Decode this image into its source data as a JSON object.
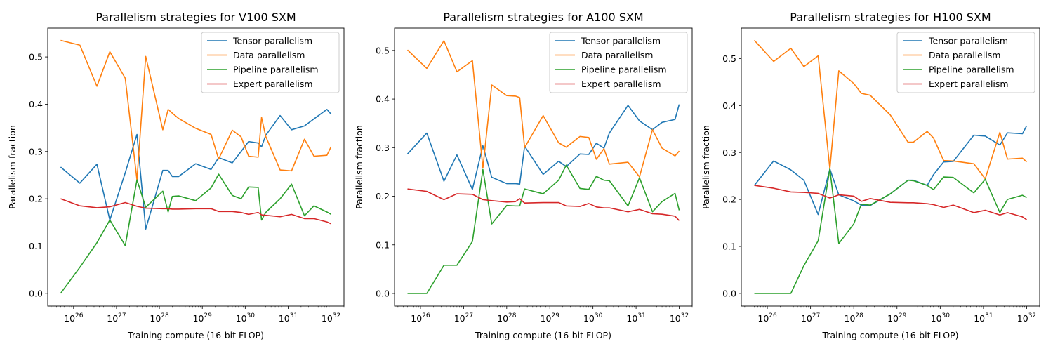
{
  "series_colors": {
    "Tensor parallelism": "#1f77b4",
    "Data parallelism": "#ff7f0e",
    "Pipeline parallelism": "#2ca02c",
    "Expert parallelism": "#d62728"
  },
  "chart_data": [
    {
      "type": "line",
      "title": "Parallelism strategies for V100 SXM",
      "xlabel": "Training compute (16-bit FLOP)",
      "ylabel": "Parallelism fraction",
      "xscale": "log",
      "xlim": [
        2.5e+25,
        2e+32
      ],
      "ylim": [
        -0.027,
        0.561
      ],
      "x_ticks": [
        {
          "value": 1e+26,
          "label": "10",
          "exp": "26"
        },
        {
          "value": 1e+27,
          "label": "10",
          "exp": "27"
        },
        {
          "value": 1e+28,
          "label": "10",
          "exp": "28"
        },
        {
          "value": 1e+29,
          "label": "10",
          "exp": "29"
        },
        {
          "value": 1e+30,
          "label": "10",
          "exp": "30"
        },
        {
          "value": 1e+31,
          "label": "10",
          "exp": "31"
        },
        {
          "value": 1e+32,
          "label": "10",
          "exp": "32"
        }
      ],
      "y_ticks": [
        {
          "value": 0.0,
          "label": "0.0"
        },
        {
          "value": 0.1,
          "label": "0.1"
        },
        {
          "value": 0.2,
          "label": "0.2"
        },
        {
          "value": 0.3,
          "label": "0.3"
        },
        {
          "value": 0.4,
          "label": "0.4"
        },
        {
          "value": 0.5,
          "label": "0.5"
        }
      ],
      "legend_position": "top-right",
      "series": [
        {
          "name": "Tensor parallelism",
          "x": [
            5e+25,
            1.4e+26,
            3.5e+26,
            7e+26,
            1.6e+27,
            3e+27,
            4.8e+27,
            1.2e+28,
            1.6e+28,
            2e+28,
            2.8e+28,
            7e+28,
            1.6e+29,
            2.4e+29,
            5e+29,
            8e+29,
            1.2e+30,
            2e+30,
            2.4e+30,
            3e+30,
            6.5e+30,
            1.2e+31,
            2.4e+31,
            4e+31,
            8e+31,
            1e+32
          ],
          "y": [
            0.267,
            0.233,
            0.273,
            0.155,
            0.255,
            0.336,
            0.136,
            0.26,
            0.26,
            0.247,
            0.247,
            0.274,
            0.262,
            0.287,
            0.276,
            0.3,
            0.321,
            0.318,
            0.31,
            0.334,
            0.376,
            0.346,
            0.354,
            0.369,
            0.389,
            0.379
          ]
        },
        {
          "name": "Data parallelism",
          "x": [
            5e+25,
            1.4e+26,
            3.5e+26,
            7e+26,
            1.6e+27,
            3e+27,
            4.8e+27,
            1.2e+28,
            1.6e+28,
            2e+28,
            2.8e+28,
            7e+28,
            1.6e+29,
            2.4e+29,
            5e+29,
            8e+29,
            1.2e+30,
            2e+30,
            2.4e+30,
            3e+30,
            6.5e+30,
            1.2e+31,
            2.4e+31,
            4e+31,
            8e+31,
            1e+32
          ],
          "y": [
            0.535,
            0.525,
            0.438,
            0.511,
            0.455,
            0.24,
            0.501,
            0.346,
            0.389,
            0.381,
            0.37,
            0.349,
            0.336,
            0.284,
            0.345,
            0.331,
            0.29,
            0.288,
            0.372,
            0.332,
            0.261,
            0.259,
            0.326,
            0.29,
            0.292,
            0.31
          ]
        },
        {
          "name": "Pipeline parallelism",
          "x": [
            5e+25,
            1.4e+26,
            3.5e+26,
            7e+26,
            1.6e+27,
            3e+27,
            4.8e+27,
            1.2e+28,
            1.6e+28,
            2e+28,
            2.8e+28,
            7e+28,
            1.6e+29,
            2.4e+29,
            5e+29,
            8e+29,
            1.2e+30,
            2e+30,
            2.4e+30,
            3e+30,
            6.5e+30,
            1.2e+31,
            2.4e+31,
            4e+31,
            8e+31,
            1e+32
          ],
          "y": [
            0.0,
            0.055,
            0.107,
            0.155,
            0.101,
            0.24,
            0.182,
            0.216,
            0.172,
            0.205,
            0.206,
            0.196,
            0.223,
            0.252,
            0.207,
            0.2,
            0.225,
            0.224,
            0.155,
            0.171,
            0.2,
            0.231,
            0.164,
            0.185,
            0.172,
            0.167
          ]
        },
        {
          "name": "Expert parallelism",
          "x": [
            5e+25,
            1.4e+26,
            3.5e+26,
            7e+26,
            1.6e+27,
            3e+27,
            4.8e+27,
            1.2e+28,
            1.6e+28,
            2e+28,
            2.8e+28,
            7e+28,
            1.6e+29,
            2.4e+29,
            5e+29,
            8e+29,
            1.2e+30,
            2e+30,
            2.4e+30,
            3e+30,
            6.5e+30,
            1.2e+31,
            2.4e+31,
            4e+31,
            8e+31,
            1e+32
          ],
          "y": [
            0.2,
            0.185,
            0.181,
            0.183,
            0.192,
            0.184,
            0.18,
            0.179,
            0.179,
            0.178,
            0.178,
            0.179,
            0.179,
            0.173,
            0.173,
            0.171,
            0.167,
            0.171,
            0.166,
            0.165,
            0.162,
            0.167,
            0.158,
            0.158,
            0.151,
            0.147
          ]
        }
      ]
    },
    {
      "type": "line",
      "title": "Parallelism strategies for A100 SXM",
      "xlabel": "Training compute (16-bit FLOP)",
      "ylabel": "Parallelism fraction",
      "xscale": "log",
      "xlim": [
        2.5e+25,
        2e+32
      ],
      "ylim": [
        -0.026,
        0.546
      ],
      "x_ticks": [
        {
          "value": 1e+26,
          "label": "10",
          "exp": "26"
        },
        {
          "value": 1e+27,
          "label": "10",
          "exp": "27"
        },
        {
          "value": 1e+28,
          "label": "10",
          "exp": "28"
        },
        {
          "value": 1e+29,
          "label": "10",
          "exp": "29"
        },
        {
          "value": 1e+30,
          "label": "10",
          "exp": "30"
        },
        {
          "value": 1e+31,
          "label": "10",
          "exp": "31"
        },
        {
          "value": 1e+32,
          "label": "10",
          "exp": "32"
        }
      ],
      "y_ticks": [
        {
          "value": 0.0,
          "label": "0.0"
        },
        {
          "value": 0.1,
          "label": "0.1"
        },
        {
          "value": 0.2,
          "label": "0.2"
        },
        {
          "value": 0.3,
          "label": "0.3"
        },
        {
          "value": 0.4,
          "label": "0.4"
        },
        {
          "value": 0.5,
          "label": "0.5"
        }
      ],
      "legend_position": "top-right",
      "series": [
        {
          "name": "Tensor parallelism",
          "x": [
            5e+25,
            1.4e+26,
            3.5e+26,
            7e+26,
            1.6e+27,
            2.8e+27,
            4.5e+27,
            1e+28,
            1.6e+28,
            2e+28,
            2.6e+28,
            7e+28,
            1.6e+29,
            2.4e+29,
            5e+29,
            8e+29,
            1.2e+30,
            1.8e+30,
            2.4e+30,
            6.5e+30,
            1.2e+31,
            2.4e+31,
            4e+31,
            8e+31,
            1e+32
          ],
          "y": [
            0.287,
            0.33,
            0.231,
            0.285,
            0.214,
            0.304,
            0.239,
            0.226,
            0.226,
            0.225,
            0.303,
            0.245,
            0.272,
            0.261,
            0.287,
            0.286,
            0.309,
            0.299,
            0.33,
            0.387,
            0.355,
            0.337,
            0.352,
            0.358,
            0.389
          ]
        },
        {
          "name": "Data parallelism",
          "x": [
            5e+25,
            1.4e+26,
            3.5e+26,
            7e+26,
            1.6e+27,
            2.8e+27,
            4.5e+27,
            1e+28,
            1.6e+28,
            2e+28,
            2.6e+28,
            7e+28,
            1.6e+29,
            2.4e+29,
            5e+29,
            8e+29,
            1.2e+30,
            1.8e+30,
            2.4e+30,
            6.5e+30,
            1.2e+31,
            2.4e+31,
            4e+31,
            8e+31,
            1e+32
          ],
          "y": [
            0.501,
            0.463,
            0.52,
            0.456,
            0.479,
            0.258,
            0.429,
            0.407,
            0.406,
            0.403,
            0.3,
            0.366,
            0.31,
            0.301,
            0.323,
            0.321,
            0.276,
            0.298,
            0.266,
            0.27,
            0.24,
            0.337,
            0.299,
            0.283,
            0.293
          ]
        },
        {
          "name": "Pipeline parallelism",
          "x": [
            5e+25,
            1.4e+26,
            3.5e+26,
            7e+26,
            1.6e+27,
            2.8e+27,
            4.5e+27,
            1e+28,
            1.6e+28,
            2e+28,
            2.6e+28,
            7e+28,
            1.6e+29,
            2.4e+29,
            5e+29,
            8e+29,
            1.2e+30,
            1.8e+30,
            2.4e+30,
            6.5e+30,
            1.2e+31,
            2.4e+31,
            4e+31,
            8e+31,
            1e+32
          ],
          "y": [
            0.0,
            0.0,
            0.058,
            0.058,
            0.107,
            0.255,
            0.143,
            0.181,
            0.18,
            0.18,
            0.215,
            0.205,
            0.233,
            0.264,
            0.216,
            0.214,
            0.241,
            0.233,
            0.232,
            0.18,
            0.238,
            0.168,
            0.189,
            0.206,
            0.171
          ]
        },
        {
          "name": "Expert parallelism",
          "x": [
            5e+25,
            1.4e+26,
            3.5e+26,
            7e+26,
            1.6e+27,
            2.8e+27,
            4.5e+27,
            1e+28,
            1.6e+28,
            2e+28,
            2.6e+28,
            7e+28,
            1.6e+29,
            2.4e+29,
            5e+29,
            8e+29,
            1.2e+30,
            1.8e+30,
            2.4e+30,
            6.5e+30,
            1.2e+31,
            2.4e+31,
            4e+31,
            8e+31,
            1e+32
          ],
          "y": [
            0.215,
            0.21,
            0.193,
            0.205,
            0.204,
            0.193,
            0.191,
            0.188,
            0.189,
            0.195,
            0.186,
            0.187,
            0.187,
            0.18,
            0.179,
            0.185,
            0.178,
            0.176,
            0.176,
            0.168,
            0.173,
            0.164,
            0.163,
            0.159,
            0.15
          ]
        }
      ]
    },
    {
      "type": "line",
      "title": "Parallelism strategies for H100 SXM",
      "xlabel": "Training compute (16-bit FLOP)",
      "ylabel": "Parallelism fraction",
      "xscale": "log",
      "xlim": [
        2.5e+25,
        2e+32
      ],
      "ylim": [
        -0.027,
        0.565
      ],
      "x_ticks": [
        {
          "value": 1e+26,
          "label": "10",
          "exp": "26"
        },
        {
          "value": 1e+27,
          "label": "10",
          "exp": "27"
        },
        {
          "value": 1e+28,
          "label": "10",
          "exp": "28"
        },
        {
          "value": 1e+29,
          "label": "10",
          "exp": "29"
        },
        {
          "value": 1e+30,
          "label": "10",
          "exp": "30"
        },
        {
          "value": 1e+31,
          "label": "10",
          "exp": "31"
        },
        {
          "value": 1e+32,
          "label": "10",
          "exp": "32"
        }
      ],
      "y_ticks": [
        {
          "value": 0.0,
          "label": "0.0"
        },
        {
          "value": 0.1,
          "label": "0.1"
        },
        {
          "value": 0.2,
          "label": "0.2"
        },
        {
          "value": 0.3,
          "label": "0.3"
        },
        {
          "value": 0.4,
          "label": "0.4"
        },
        {
          "value": 0.5,
          "label": "0.5"
        }
      ],
      "legend_position": "top-right",
      "series": [
        {
          "name": "Tensor parallelism",
          "x": [
            5e+25,
            1.4e+26,
            3.5e+26,
            7e+26,
            1.5e+27,
            2.8e+27,
            4.5e+27,
            1e+28,
            1.5e+28,
            2.4e+28,
            7e+28,
            1.8e+29,
            2.4e+29,
            5e+29,
            7e+29,
            1.2e+30,
            2e+30,
            6e+30,
            1.1e+31,
            2.4e+31,
            3.6e+31,
            8e+31,
            1e+32
          ],
          "y": [
            0.23,
            0.282,
            0.263,
            0.241,
            0.168,
            0.265,
            0.21,
            0.197,
            0.188,
            0.187,
            0.212,
            0.241,
            0.241,
            0.23,
            0.253,
            0.28,
            0.281,
            0.337,
            0.335,
            0.316,
            0.342,
            0.34,
            0.357
          ]
        },
        {
          "name": "Data parallelism",
          "x": [
            5e+25,
            1.4e+26,
            3.5e+26,
            7e+26,
            1.5e+27,
            2.8e+27,
            4.5e+27,
            1e+28,
            1.5e+28,
            2.4e+28,
            7e+28,
            1.8e+29,
            2.4e+29,
            5e+29,
            7e+29,
            1.2e+30,
            2e+30,
            6e+30,
            1.1e+31,
            2.4e+31,
            3.6e+31,
            8e+31,
            1e+32
          ],
          "y": [
            0.539,
            0.494,
            0.522,
            0.483,
            0.506,
            0.265,
            0.474,
            0.447,
            0.426,
            0.422,
            0.38,
            0.322,
            0.322,
            0.345,
            0.331,
            0.283,
            0.282,
            0.276,
            0.244,
            0.343,
            0.286,
            0.288,
            0.28
          ]
        },
        {
          "name": "Pipeline parallelism",
          "x": [
            5e+25,
            1.4e+26,
            3.5e+26,
            7e+26,
            1.5e+27,
            2.8e+27,
            4.5e+27,
            1e+28,
            1.5e+28,
            2.4e+28,
            7e+28,
            1.8e+29,
            2.4e+29,
            5e+29,
            7e+29,
            1.2e+30,
            2e+30,
            6e+30,
            1.1e+31,
            2.4e+31,
            3.6e+31,
            8e+31,
            1e+32
          ],
          "y": [
            0.0,
            0.0,
            0.0,
            0.059,
            0.112,
            0.265,
            0.106,
            0.148,
            0.19,
            0.188,
            0.212,
            0.241,
            0.24,
            0.23,
            0.221,
            0.248,
            0.247,
            0.214,
            0.243,
            0.172,
            0.2,
            0.209,
            0.204
          ]
        },
        {
          "name": "Expert parallelism",
          "x": [
            5e+25,
            1.4e+26,
            3.5e+26,
            7e+26,
            1.5e+27,
            2.8e+27,
            4.5e+27,
            1e+28,
            1.5e+28,
            2.4e+28,
            7e+28,
            1.8e+29,
            2.4e+29,
            5e+29,
            7e+29,
            1.2e+30,
            2e+30,
            6e+30,
            1.1e+31,
            2.4e+31,
            3.6e+31,
            8e+31,
            1e+32
          ],
          "y": [
            0.23,
            0.224,
            0.216,
            0.215,
            0.213,
            0.203,
            0.21,
            0.207,
            0.196,
            0.202,
            0.194,
            0.193,
            0.193,
            0.191,
            0.189,
            0.183,
            0.188,
            0.172,
            0.177,
            0.167,
            0.172,
            0.163,
            0.157
          ]
        }
      ]
    }
  ]
}
